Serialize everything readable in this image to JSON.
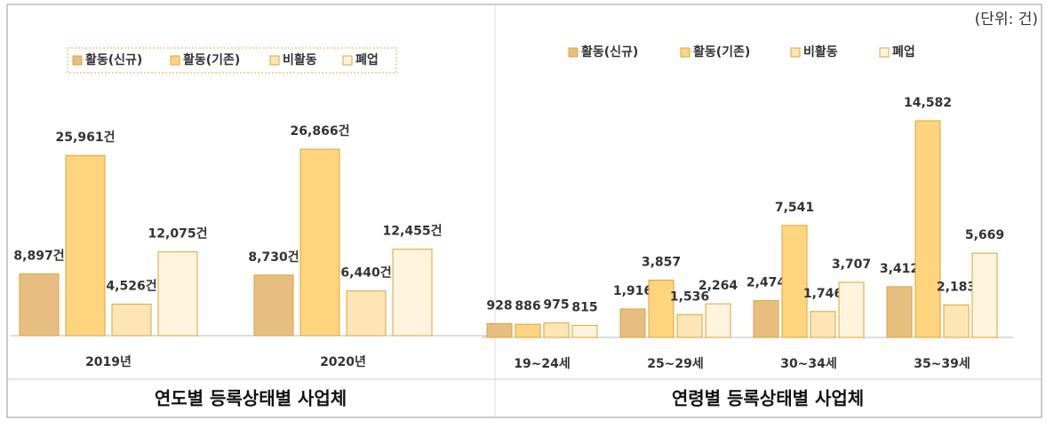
{
  "unit": "(단위: 건)",
  "chart_data": [
    {
      "type": "bar",
      "title": "연도별 등록상태별 사업체",
      "categories": [
        "2019년",
        "2020년"
      ],
      "series": [
        {
          "name": "활동(신규)",
          "color": "#e8bd80",
          "values": [
            8897,
            8730
          ],
          "value_labels": [
            "8,897건",
            "8,730건"
          ]
        },
        {
          "name": "활동(기존)",
          "color": "#ffd47e",
          "values": [
            25961,
            26866
          ],
          "value_labels": [
            "25,961건",
            "26,866건"
          ]
        },
        {
          "name": "비활동",
          "color": "#fde5b6",
          "values": [
            4526,
            6440
          ],
          "value_labels": [
            "4,526건",
            "6,440건"
          ]
        },
        {
          "name": "폐업",
          "color": "#fff4de",
          "values": [
            12075,
            12455
          ],
          "value_labels": [
            "12,075건",
            "12,455건"
          ]
        }
      ]
    },
    {
      "type": "bar",
      "title": "연령별 등록상태별 사업체",
      "categories": [
        "19~24세",
        "25~29세",
        "30~34세",
        "35~39세"
      ],
      "series": [
        {
          "name": "활동(신규)",
          "color": "#e8bd80",
          "values": [
            928,
            1916,
            2474,
            3412
          ],
          "value_labels": [
            "928",
            "1,916",
            "2,474",
            "3,412"
          ]
        },
        {
          "name": "활동(기존)",
          "color": "#ffd47e",
          "values": [
            886,
            3857,
            7541,
            14582
          ],
          "value_labels": [
            "886",
            "3,857",
            "7,541",
            "14,582"
          ]
        },
        {
          "name": "비활동",
          "color": "#fde5b6",
          "values": [
            975,
            1536,
            1746,
            2183
          ],
          "value_labels": [
            "975",
            "1,536",
            "1,746",
            "2,183"
          ]
        },
        {
          "name": "폐업",
          "color": "#fff4de",
          "values": [
            815,
            2264,
            3707,
            5669
          ],
          "value_labels": [
            "815",
            "2,264",
            "3,707",
            "5,669"
          ]
        }
      ]
    }
  ]
}
